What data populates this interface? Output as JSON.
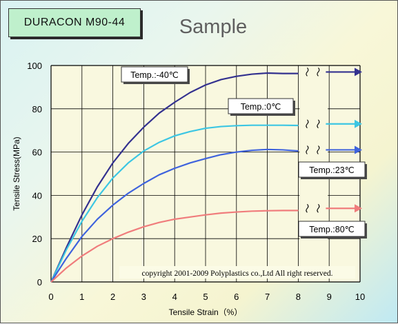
{
  "badge": {
    "label": "DURACON  M90-44"
  },
  "title": "Sample",
  "copyright": "copyright 2001-2009 Polyplastics co.,Ltd All right reserved.",
  "colors": {
    "plot_background": "#f9f8df",
    "grid": "#000000",
    "badge_background": "#bff0cc",
    "title_text": "#5f5f5f"
  },
  "chart_data": {
    "type": "line",
    "xlabel": "Tensile Strain（%）",
    "ylabel": "Tensile Stress(MPa)",
    "xlim": [
      0,
      10
    ],
    "ylim": [
      0,
      100
    ],
    "x_ticks": [
      0,
      1,
      2,
      3,
      4,
      5,
      6,
      7,
      8,
      9,
      10
    ],
    "y_ticks": [
      0,
      20,
      40,
      60,
      80,
      100
    ],
    "grid": true,
    "axis_break_at_x": 8.5,
    "series": [
      {
        "name": "Temp.:-40℃",
        "color": "#33318f",
        "x": [
          0,
          0.5,
          1,
          1.5,
          2,
          2.5,
          3,
          3.5,
          4,
          4.5,
          5,
          5.5,
          6,
          6.5,
          7,
          7.5,
          8
        ],
        "y": [
          0,
          16,
          31,
          44,
          55,
          64,
          71.5,
          78,
          83,
          87.5,
          91,
          93.5,
          95,
          96,
          96.5,
          96.3,
          96.3
        ],
        "continuation_y": 97
      },
      {
        "name": "Temp.:0℃",
        "color": "#3cc6e3",
        "x": [
          0,
          0.5,
          1,
          1.5,
          2,
          2.5,
          3,
          3.5,
          4,
          4.5,
          5,
          5.5,
          6,
          6.5,
          7,
          7.5,
          8
        ],
        "y": [
          0,
          15,
          28,
          39,
          48,
          55,
          60.5,
          64.5,
          67.5,
          69.5,
          71,
          71.8,
          72.2,
          72.4,
          72.4,
          72.4,
          72.3
        ],
        "continuation_y": 73
      },
      {
        "name": "Temp.:23℃",
        "color": "#3f63dd",
        "x": [
          0,
          0.5,
          1,
          1.5,
          2,
          2.5,
          3,
          3.5,
          4,
          4.5,
          5,
          5.5,
          6,
          6.5,
          7,
          7.5,
          8
        ],
        "y": [
          0,
          11,
          21,
          29,
          35.5,
          41,
          45.5,
          49.5,
          52.5,
          55,
          57,
          58.8,
          60,
          60.8,
          61.2,
          61,
          60.5
        ],
        "continuation_y": 61
      },
      {
        "name": "Temp.:80℃",
        "color": "#f07c7c",
        "x": [
          0,
          0.5,
          1,
          1.5,
          2,
          2.5,
          3,
          3.5,
          4,
          4.5,
          5,
          5.5,
          6,
          6.5,
          7,
          7.5,
          8
        ],
        "y": [
          0,
          6.5,
          12,
          16.5,
          20,
          23,
          25.5,
          27.5,
          29,
          30,
          31,
          31.8,
          32.3,
          32.7,
          32.9,
          33,
          33
        ],
        "continuation_y": 34
      }
    ]
  }
}
